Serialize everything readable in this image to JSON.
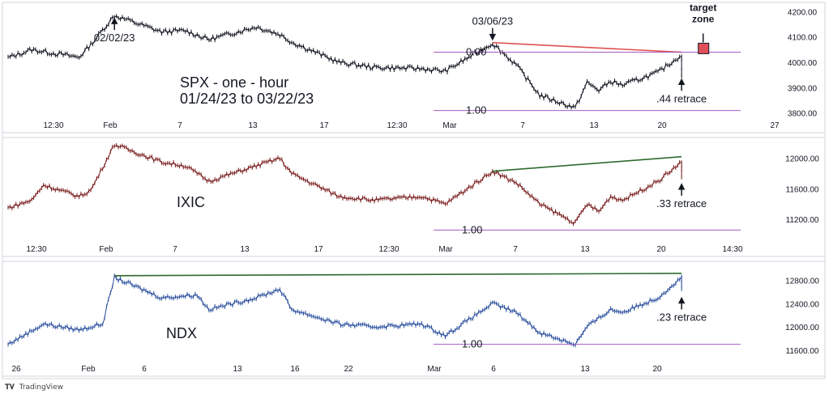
{
  "footer": {
    "brand": "TradingView",
    "logo": "tradingview-logo-icon"
  },
  "colors": {
    "spx": "#131722",
    "ixic": "#7a1d1d",
    "ndx": "#2a4f9e",
    "trend_red": "#e05050",
    "trend_green": "#2e6b2e",
    "fib_line": "#a45bc2",
    "target_box": "#e0505a"
  },
  "chart_data": [
    {
      "type": "line",
      "name": "SPX",
      "title": "SPX - one - hour",
      "subtitle": "01/24/23 to 03/22/23",
      "x_tick_labels": [
        "12:30",
        "Feb",
        "7",
        "13",
        "17",
        "12:30",
        "Mar",
        "7",
        "13",
        "20",
        "27"
      ],
      "y_ticks": [
        3800,
        3900,
        4000,
        4100,
        4200
      ],
      "ylim": [
        3780,
        4230
      ],
      "xlim": [
        "01/24/23",
        "03/27/23"
      ],
      "x_anchors": [
        [
          "01/24/23",
          4018
        ],
        [
          "01/26/23",
          4050
        ],
        [
          "01/30/23",
          4020
        ],
        [
          "01/31/23",
          4070
        ],
        [
          "02/02/23",
          4185
        ],
        [
          "02/06/23",
          4120
        ],
        [
          "02/08/23",
          4125
        ],
        [
          "02/10/23",
          4090
        ],
        [
          "02/14/23",
          4140
        ],
        [
          "02/16/23",
          4110
        ],
        [
          "02/17/23",
          4080
        ],
        [
          "02/21/23",
          4000
        ],
        [
          "02/24/23",
          3980
        ],
        [
          "02/28/23",
          3975
        ],
        [
          "03/02/23",
          3965
        ],
        [
          "03/06/23",
          4075
        ],
        [
          "03/08/23",
          3990
        ],
        [
          "03/10/23",
          3870
        ],
        [
          "03/13/23",
          3820
        ],
        [
          "03/14/23",
          3920
        ],
        [
          "03/15/23",
          3890
        ],
        [
          "03/16/23",
          3925
        ],
        [
          "03/17/23",
          3910
        ],
        [
          "03/20/23",
          3960
        ],
        [
          "03/22/23",
          4030
        ],
        [
          "03/22/23",
          3945
        ]
      ],
      "annotations": [
        {
          "text": "02/02/23",
          "x": "02/02/23",
          "y": 4185,
          "arrow": "up"
        },
        {
          "text": "03/06/23",
          "x": "03/06/23",
          "y": 4078,
          "arrow": "down"
        },
        {
          "text": "0.00",
          "y": 4040
        },
        {
          "text": "1.00",
          "y": 3810
        },
        {
          "text": ".44 retrace",
          "x": "03/22/23",
          "y": 3945,
          "arrow": "up"
        },
        {
          "text": "target\nzone",
          "x": "03/23/23",
          "y": 4050,
          "box": true
        }
      ],
      "lines": [
        {
          "kind": "trend",
          "color": "trend_red",
          "from": [
            "03/06/23",
            4078
          ],
          "to": [
            "03/22/23",
            4040
          ]
        },
        {
          "kind": "fib",
          "label": "0.00",
          "y": 4040,
          "from": "03/01/23",
          "to": "03/27/23"
        },
        {
          "kind": "fib",
          "label": "1.00",
          "y": 3810,
          "from": "03/01/23",
          "to": "03/27/23"
        }
      ]
    },
    {
      "type": "line",
      "name": "IXIC",
      "title": "IXIC",
      "x_tick_labels": [
        "12:30",
        "Feb",
        "7",
        "13",
        "17",
        "12:30",
        "Mar",
        "7",
        "13",
        "20",
        "14:30"
      ],
      "y_ticks": [
        11200,
        11600,
        12000
      ],
      "ylim": [
        11000,
        12250
      ],
      "xlim": [
        "01/24/23",
        "03/27/23"
      ],
      "x_anchors": [
        [
          "01/24/23",
          11350
        ],
        [
          "01/26/23",
          11450
        ],
        [
          "01/27/23",
          11650
        ],
        [
          "01/30/23",
          11500
        ],
        [
          "01/31/23",
          11580
        ],
        [
          "02/02/23",
          12180
        ],
        [
          "02/06/23",
          11950
        ],
        [
          "02/08/23",
          11900
        ],
        [
          "02/10/23",
          11700
        ],
        [
          "02/13/23",
          11850
        ],
        [
          "02/16/23",
          12000
        ],
        [
          "02/17/23",
          11800
        ],
        [
          "02/21/23",
          11500
        ],
        [
          "02/24/23",
          11450
        ],
        [
          "02/28/23",
          11500
        ],
        [
          "03/02/23",
          11400
        ],
        [
          "03/06/23",
          11830
        ],
        [
          "03/08/23",
          11680
        ],
        [
          "03/10/23",
          11400
        ],
        [
          "03/13/23",
          11150
        ],
        [
          "03/14/23",
          11400
        ],
        [
          "03/15/23",
          11300
        ],
        [
          "03/16/23",
          11500
        ],
        [
          "03/17/23",
          11450
        ],
        [
          "03/20/23",
          11700
        ],
        [
          "03/22/23",
          11950
        ],
        [
          "03/22/23",
          11750
        ]
      ],
      "annotations": [
        {
          "text": ".33 retrace",
          "x": "03/22/23",
          "y": 11700,
          "arrow": "up"
        },
        {
          "text": "1.00",
          "y": 11060
        }
      ],
      "lines": [
        {
          "kind": "trend",
          "color": "trend_green",
          "from": [
            "03/06/23",
            11830
          ],
          "to": [
            "03/22/23",
            12020
          ]
        },
        {
          "kind": "fib",
          "label": "1.00",
          "y": 11060,
          "from": "03/01/23",
          "to": "03/27/23"
        }
      ]
    },
    {
      "type": "line",
      "name": "NDX",
      "title": "NDX",
      "x_tick_labels": [
        "26",
        "Feb",
        "6",
        "13",
        "16",
        "22",
        "Mar",
        "6",
        "13",
        "20"
      ],
      "y_ticks": [
        11600,
        12000,
        12400,
        12800
      ],
      "ylim": [
        11500,
        13100
      ],
      "xlim": [
        "01/24/23",
        "03/27/23"
      ],
      "x_anchors": [
        [
          "01/24/23",
          11700
        ],
        [
          "01/27/23",
          12050
        ],
        [
          "01/30/23",
          11950
        ],
        [
          "02/01/23",
          12050
        ],
        [
          "02/02/23",
          12850
        ],
        [
          "02/06/23",
          12500
        ],
        [
          "02/09/23",
          12550
        ],
        [
          "02/10/23",
          12300
        ],
        [
          "02/14/23",
          12500
        ],
        [
          "02/16/23",
          12650
        ],
        [
          "02/17/23",
          12300
        ],
        [
          "02/21/23",
          12050
        ],
        [
          "02/24/23",
          12000
        ],
        [
          "02/28/23",
          12050
        ],
        [
          "03/02/23",
          11850
        ],
        [
          "03/06/23",
          12400
        ],
        [
          "03/08/23",
          12250
        ],
        [
          "03/10/23",
          11900
        ],
        [
          "03/13/23",
          11700
        ],
        [
          "03/14/23",
          12000
        ],
        [
          "03/16/23",
          12300
        ],
        [
          "03/17/23",
          12250
        ],
        [
          "03/20/23",
          12500
        ],
        [
          "03/22/23",
          12850
        ],
        [
          "03/22/23",
          12650
        ]
      ],
      "annotations": [
        {
          "text": ".23 retrace",
          "x": "03/22/23",
          "y": 12550,
          "arrow": "up"
        },
        {
          "text": "1.00",
          "y": 11700
        }
      ],
      "lines": [
        {
          "kind": "trend",
          "color": "trend_green",
          "from": [
            "02/02/23",
            12880
          ],
          "to": [
            "03/22/23",
            12920
          ]
        },
        {
          "kind": "fib",
          "label": "1.00",
          "y": 11700,
          "from": "03/01/23",
          "to": "03/27/23"
        }
      ]
    }
  ]
}
